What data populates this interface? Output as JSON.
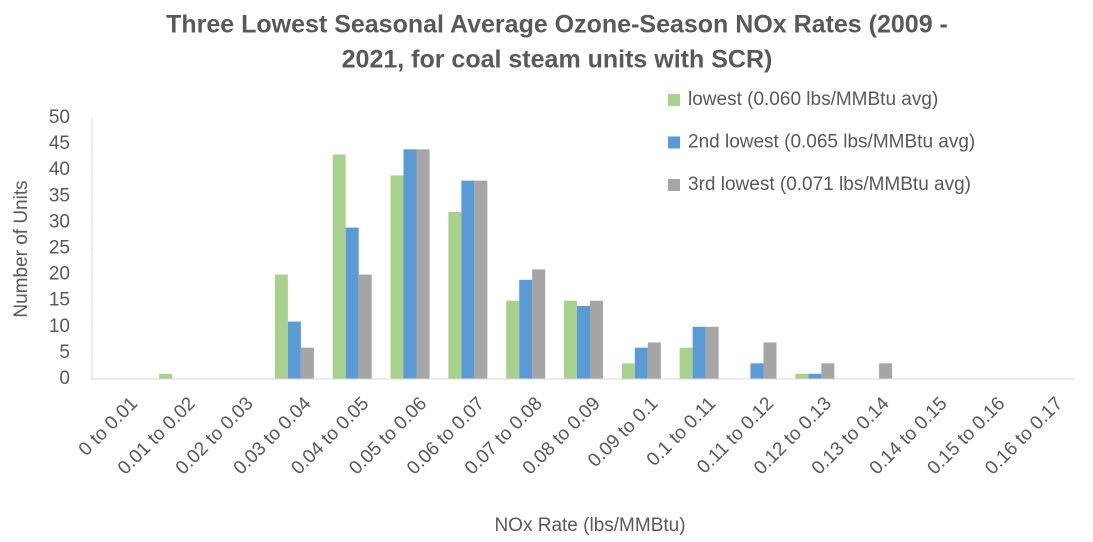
{
  "chart_data": {
    "type": "bar",
    "title": [
      "Three Lowest Seasonal Average Ozone-Season NOx Rates (2009 -",
      "2021, for coal steam units with SCR)"
    ],
    "x_label": "NOx Rate (lbs/MMBtu)",
    "y_label": "Number of Units",
    "categories": [
      "0 to 0.01",
      "0.01 to 0.02",
      "0.02 to 0.03",
      "0.03 to 0.04",
      "0.04 to 0.05",
      "0.05 to 0.06",
      "0.06 to 0.07",
      "0.07 to 0.08",
      "0.08 to 0.09",
      "0.09 to 0.1",
      "0.1 to 0.11",
      "0.11 to 0.12",
      "0.12 to 0.13",
      "0.13 to 0.14",
      "0.14 to 0.15",
      "0.15 to 0.16",
      "0.16 to 0.17"
    ],
    "series": [
      {
        "name": "lowest (0.060 lbs/MMBtu avg)",
        "color": "#a9d18e",
        "values": [
          0,
          1,
          0,
          20,
          43,
          39,
          32,
          15,
          15,
          3,
          6,
          0,
          1,
          0,
          0,
          0,
          0
        ]
      },
      {
        "name": "2nd lowest (0.065 lbs/MMBtu avg)",
        "color": "#5b9bd5",
        "values": [
          0,
          0,
          0,
          11,
          29,
          44,
          38,
          19,
          14,
          6,
          10,
          3,
          1,
          0,
          0,
          0,
          0
        ]
      },
      {
        "name": "3rd lowest (0.071 lbs/MMBtu avg)",
        "color": "#a5a5a5",
        "values": [
          0,
          0,
          0,
          6,
          20,
          44,
          38,
          21,
          15,
          7,
          10,
          7,
          3,
          3,
          0,
          0,
          0
        ]
      }
    ],
    "ylim": [
      0,
      50
    ],
    "yticks": [
      0,
      5,
      10,
      15,
      20,
      25,
      30,
      35,
      40,
      45,
      50
    ],
    "grid": false,
    "legend": "top-right"
  }
}
